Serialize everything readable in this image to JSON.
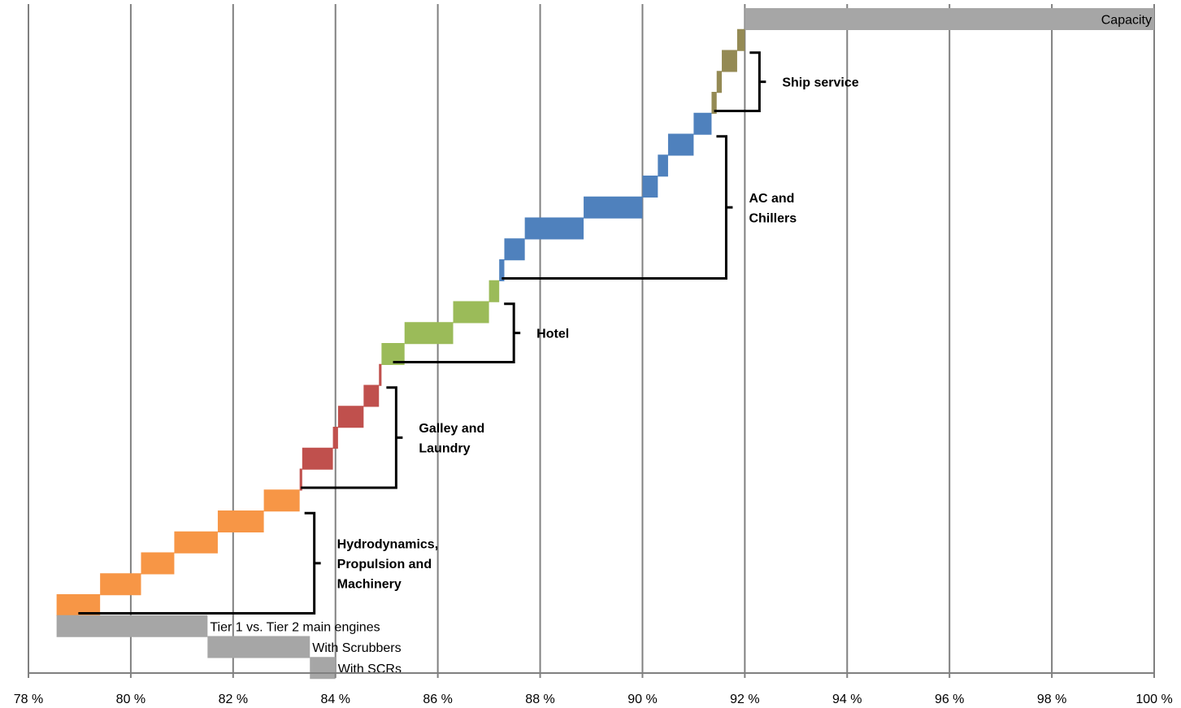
{
  "chart_data": {
    "type": "bar",
    "orientation": "horizontal-floating (waterfall)",
    "xlim": [
      78,
      100
    ],
    "x_ticks": [
      78,
      80,
      82,
      84,
      86,
      88,
      90,
      92,
      94,
      96,
      98,
      100
    ],
    "x_tick_labels": [
      "78 %",
      "80 %",
      "82 %",
      "84 %",
      "86 %",
      "88 %",
      "90 %",
      "92 %",
      "94 %",
      "96 %",
      "98 %",
      "100 %"
    ],
    "grid": "vertical",
    "colors": {
      "gray": "#a6a6a6",
      "orange": "#f79646",
      "red": "#c0504d",
      "green": "#9bbb59",
      "blue": "#4f81bd",
      "olive": "#948a54",
      "grid": "#808080",
      "bracket": "#000000"
    },
    "bars": [
      {
        "start": 92.0,
        "end": 100.0,
        "color": "gray",
        "label": "Capacity"
      },
      {
        "start": 91.85,
        "end": 92.0,
        "color": "olive"
      },
      {
        "start": 91.55,
        "end": 91.85,
        "color": "olive"
      },
      {
        "start": 91.45,
        "end": 91.55,
        "color": "olive"
      },
      {
        "start": 91.35,
        "end": 91.45,
        "color": "olive"
      },
      {
        "start": 91.0,
        "end": 91.35,
        "color": "blue"
      },
      {
        "start": 90.5,
        "end": 91.0,
        "color": "blue"
      },
      {
        "start": 90.3,
        "end": 90.5,
        "color": "blue"
      },
      {
        "start": 90.0,
        "end": 90.3,
        "color": "blue"
      },
      {
        "start": 88.85,
        "end": 90.0,
        "color": "blue"
      },
      {
        "start": 87.7,
        "end": 88.85,
        "color": "blue"
      },
      {
        "start": 87.3,
        "end": 87.7,
        "color": "blue"
      },
      {
        "start": 87.2,
        "end": 87.3,
        "color": "blue"
      },
      {
        "start": 87.0,
        "end": 87.2,
        "color": "green"
      },
      {
        "start": 86.3,
        "end": 87.0,
        "color": "green"
      },
      {
        "start": 85.35,
        "end": 86.3,
        "color": "green"
      },
      {
        "start": 84.9,
        "end": 85.35,
        "color": "green"
      },
      {
        "start": 84.85,
        "end": 84.9,
        "color": "red"
      },
      {
        "start": 84.55,
        "end": 84.85,
        "color": "red"
      },
      {
        "start": 84.05,
        "end": 84.55,
        "color": "red"
      },
      {
        "start": 83.95,
        "end": 84.05,
        "color": "red"
      },
      {
        "start": 83.35,
        "end": 83.95,
        "color": "red"
      },
      {
        "start": 83.3,
        "end": 83.35,
        "color": "red"
      },
      {
        "start": 82.6,
        "end": 83.3,
        "color": "orange"
      },
      {
        "start": 81.7,
        "end": 82.6,
        "color": "orange"
      },
      {
        "start": 80.85,
        "end": 81.7,
        "color": "orange"
      },
      {
        "start": 80.2,
        "end": 80.85,
        "color": "orange"
      },
      {
        "start": 79.4,
        "end": 80.2,
        "color": "orange"
      },
      {
        "start": 78.55,
        "end": 79.4,
        "color": "orange"
      },
      {
        "start": 78.55,
        "end": 81.5,
        "color": "gray",
        "label": "Tier 1 vs. Tier 2 main engines"
      },
      {
        "start": 81.5,
        "end": 83.5,
        "color": "gray",
        "label": "With Scrubbers"
      },
      {
        "start": 83.5,
        "end": 84.0,
        "color": "gray",
        "label": "With SCRs"
      }
    ],
    "groups": [
      {
        "label": "Hydrodynamics, Propulsion and Machinery",
        "lines": [
          "Hydrodynamics,",
          "Propulsion and",
          "Machinery"
        ],
        "from_bar": 28,
        "to_bar": 23,
        "color": "orange"
      },
      {
        "label": "Galley and Laundry",
        "lines": [
          "Galley and",
          "Laundry"
        ],
        "from_bar": 22,
        "to_bar": 17,
        "color": "red"
      },
      {
        "label": "Hotel",
        "lines": [
          "Hotel"
        ],
        "from_bar": 16,
        "to_bar": 13,
        "color": "green"
      },
      {
        "label": "AC and Chillers",
        "lines": [
          "AC and",
          "Chillers"
        ],
        "from_bar": 12,
        "to_bar": 5,
        "color": "blue"
      },
      {
        "label": "Ship service",
        "lines": [
          "Ship service"
        ],
        "from_bar": 4,
        "to_bar": 1,
        "color": "olive"
      }
    ]
  }
}
